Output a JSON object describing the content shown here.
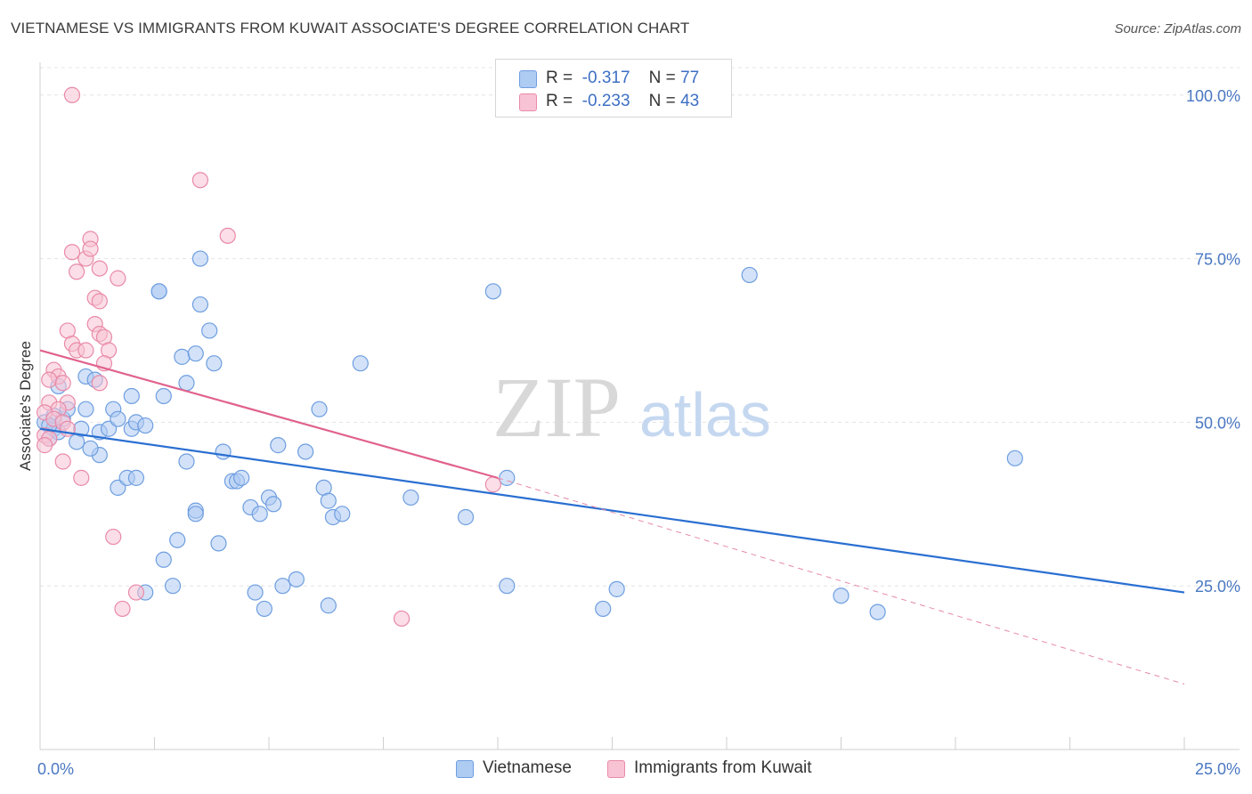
{
  "title": "VIETNAMESE VS IMMIGRANTS FROM KUWAIT ASSOCIATE'S DEGREE CORRELATION CHART",
  "source": "Source: ZipAtlas.com",
  "watermark": {
    "zip": "ZIP",
    "atlas": "atlas"
  },
  "legend_stats": [
    {
      "r_label": "R =",
      "r_value": "-0.317",
      "n_label": "N =",
      "n_value": "77",
      "color": "#aecbf2",
      "border": "#6e9ee0"
    },
    {
      "r_label": "R =",
      "r_value": "-0.233",
      "n_label": "N =",
      "n_value": "43",
      "color": "#f8c3d4",
      "border": "#e98aa8"
    }
  ],
  "chart_data": {
    "type": "scatter",
    "title": "VIETNAMESE VS IMMIGRANTS FROM KUWAIT ASSOCIATE'S DEGREE CORRELATION CHART",
    "xlabel": "",
    "ylabel": "Associate's Degree",
    "xlim": [
      0,
      25
    ],
    "ylim": [
      0,
      105
    ],
    "x_tick_labels": [
      "0.0%",
      "25.0%"
    ],
    "y_tick_labels": [
      "25.0%",
      "50.0%",
      "75.0%",
      "100.0%"
    ],
    "y_ticks": [
      25,
      50,
      75,
      100
    ],
    "grid": true,
    "legend_placement": "bottom-center",
    "series": [
      {
        "name": "Vietnamese",
        "color": "#6e9ee0",
        "fill": "#aecbf2",
        "trend": {
          "x0": 0,
          "y0": 49.0,
          "x1": 25,
          "y1": 24.0,
          "color": "#2a6fd1"
        },
        "points": [
          [
            0.1,
            50
          ],
          [
            0.2,
            47.5
          ],
          [
            0.3,
            49
          ],
          [
            0.4,
            48.5
          ],
          [
            0.5,
            50.5
          ],
          [
            0.6,
            52
          ],
          [
            0.8,
            47
          ],
          [
            0.9,
            49
          ],
          [
            0.3,
            51
          ],
          [
            0.4,
            55.5
          ],
          [
            1.0,
            57
          ],
          [
            1.2,
            56.5
          ],
          [
            1.0,
            52
          ],
          [
            1.3,
            48.5
          ],
          [
            1.5,
            49
          ],
          [
            1.6,
            52
          ],
          [
            1.7,
            50.5
          ],
          [
            2.0,
            49
          ],
          [
            2.1,
            50
          ],
          [
            2.3,
            49.5
          ],
          [
            2.0,
            54
          ],
          [
            2.7,
            54
          ],
          [
            3.1,
            60
          ],
          [
            3.2,
            56
          ],
          [
            3.4,
            60.5
          ],
          [
            3.8,
            59
          ],
          [
            3.7,
            64
          ],
          [
            3.5,
            68
          ],
          [
            2.6,
            70
          ],
          [
            2.6,
            70
          ],
          [
            3.5,
            75
          ],
          [
            1.3,
            45
          ],
          [
            1.1,
            46
          ],
          [
            1.7,
            40
          ],
          [
            1.9,
            41.5
          ],
          [
            2.1,
            41.5
          ],
          [
            3.2,
            44
          ],
          [
            4.0,
            45.5
          ],
          [
            4.2,
            41
          ],
          [
            4.3,
            41
          ],
          [
            4.4,
            41.5
          ],
          [
            4.6,
            37
          ],
          [
            3.4,
            36.5
          ],
          [
            3.4,
            36
          ],
          [
            4.8,
            36
          ],
          [
            5.0,
            38.5
          ],
          [
            5.1,
            37.5
          ],
          [
            5.2,
            46.5
          ],
          [
            5.8,
            45.5
          ],
          [
            6.1,
            52
          ],
          [
            6.2,
            40
          ],
          [
            6.3,
            38
          ],
          [
            6.4,
            35.5
          ],
          [
            6.6,
            36
          ],
          [
            7.0,
            59
          ],
          [
            3.0,
            32
          ],
          [
            3.9,
            31.5
          ],
          [
            2.7,
            29
          ],
          [
            2.9,
            25
          ],
          [
            2.3,
            24
          ],
          [
            4.7,
            24
          ],
          [
            4.9,
            21.5
          ],
          [
            5.3,
            25
          ],
          [
            5.6,
            26
          ],
          [
            6.3,
            22
          ],
          [
            8.1,
            38.5
          ],
          [
            9.3,
            35.5
          ],
          [
            9.9,
            70
          ],
          [
            10.2,
            41.5
          ],
          [
            10.2,
            25
          ],
          [
            12.3,
            21.5
          ],
          [
            12.6,
            24.5
          ],
          [
            15.5,
            72.5
          ],
          [
            17.5,
            23.5
          ],
          [
            18.3,
            21
          ],
          [
            21.3,
            44.5
          ],
          [
            0.2,
            49.5
          ]
        ]
      },
      {
        "name": "Immigrants from Kuwait",
        "color": "#e98aa8",
        "fill": "#f8c3d4",
        "trend": {
          "x0": 0,
          "y0": 61.0,
          "x1": 10,
          "y1": 41.5,
          "color": "#e0628c"
        },
        "trend_dashed": {
          "x0": 10,
          "y0": 41.5,
          "x1": 25,
          "y1": 10.0,
          "color": "#e68aa8"
        },
        "points": [
          [
            0.7,
            100
          ],
          [
            3.5,
            87
          ],
          [
            1.1,
            78
          ],
          [
            4.1,
            78.5
          ],
          [
            0.7,
            76
          ],
          [
            1.0,
            75
          ],
          [
            1.1,
            76.5
          ],
          [
            0.8,
            73
          ],
          [
            1.3,
            73.5
          ],
          [
            1.7,
            72
          ],
          [
            1.2,
            69
          ],
          [
            1.3,
            68.5
          ],
          [
            0.6,
            64
          ],
          [
            1.2,
            65
          ],
          [
            1.3,
            63.5
          ],
          [
            1.4,
            63
          ],
          [
            0.7,
            62
          ],
          [
            0.8,
            61
          ],
          [
            1.0,
            61
          ],
          [
            1.5,
            61
          ],
          [
            1.4,
            59
          ],
          [
            0.3,
            58
          ],
          [
            0.4,
            57
          ],
          [
            0.2,
            56.5
          ],
          [
            0.5,
            56
          ],
          [
            1.3,
            56
          ],
          [
            0.2,
            53
          ],
          [
            0.6,
            53
          ],
          [
            0.4,
            52
          ],
          [
            0.1,
            51.5
          ],
          [
            0.3,
            50.5
          ],
          [
            0.5,
            50
          ],
          [
            0.6,
            49
          ],
          [
            0.1,
            48
          ],
          [
            0.5,
            44
          ],
          [
            0.9,
            41.5
          ],
          [
            1.6,
            32.5
          ],
          [
            2.1,
            24
          ],
          [
            1.8,
            21.5
          ],
          [
            7.9,
            20
          ],
          [
            9.9,
            40.5
          ],
          [
            0.2,
            47.5
          ],
          [
            0.1,
            46.5
          ]
        ]
      }
    ]
  }
}
